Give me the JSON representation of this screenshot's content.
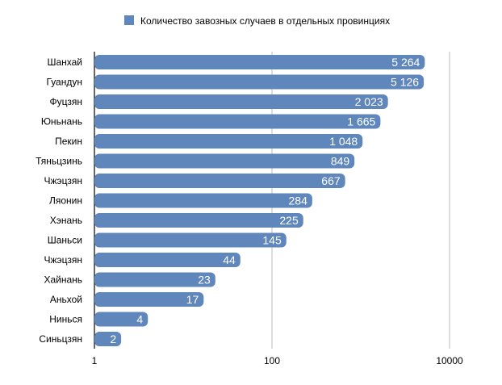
{
  "chart_data": {
    "type": "bar",
    "orientation": "horizontal",
    "x_scale": "log",
    "xlim": [
      1,
      10000
    ],
    "x_ticks": [
      "1",
      "100",
      "10000"
    ],
    "grid": true,
    "legend_position": "top",
    "bar_color": "#5f87bb",
    "categories": [
      "Шанхай",
      "Гуандун",
      "Фуцзян",
      "Юньнань",
      "Пекин",
      "Тяньцзинь",
      "Чжэцзян",
      "Ляонин",
      "Хэнань",
      "Шаньси",
      "Чжэцзян",
      "Хайнань",
      "Аньхой",
      "Нинься",
      "Синьцзян"
    ],
    "series": [
      {
        "name": "Количество завозных случаев в отдельных провинциях",
        "values": [
          5264,
          5126,
          2023,
          1665,
          1048,
          849,
          667,
          284,
          225,
          145,
          44,
          23,
          17,
          4,
          2
        ],
        "labels": [
          "5 264",
          "5 126",
          "2 023",
          "1 665",
          "1 048",
          "849",
          "667",
          "284",
          "225",
          "145",
          "44",
          "23",
          "17",
          "4",
          "2"
        ]
      }
    ]
  }
}
